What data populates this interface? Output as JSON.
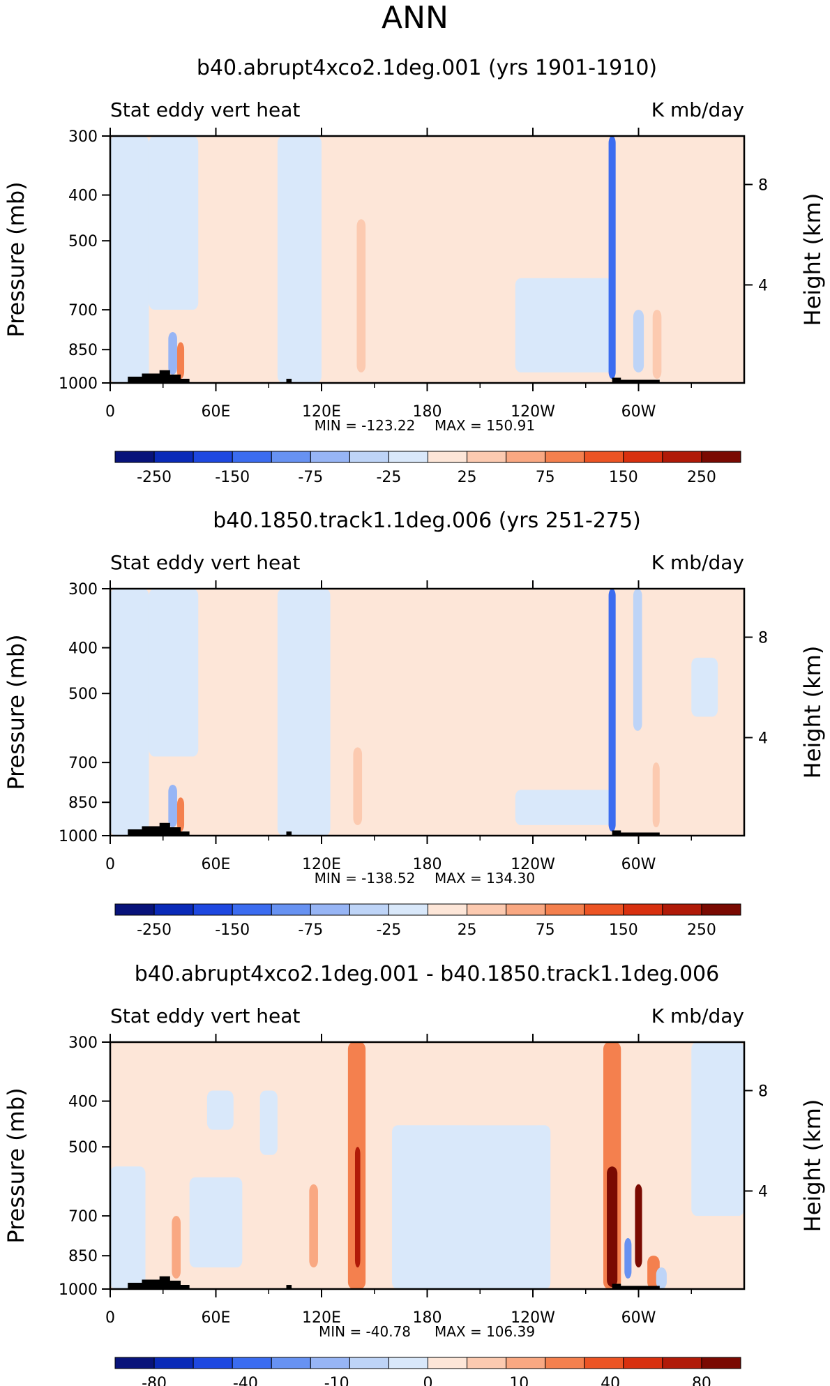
{
  "page_title": "ANN",
  "colors": {
    "frame": "#000000",
    "land": "#000000"
  },
  "chart_data": [
    {
      "type": "heatmap",
      "title": "b40.abrupt4xco2.1deg.001 (yrs 1901-1910)",
      "left_label": "Stat eddy vert heat",
      "right_label": "K mb/day",
      "ylabel": "Pressure (mb)",
      "ylabel_right": "Height (km)",
      "x_ticks": [
        "0",
        "60E",
        "120E",
        "180",
        "120W",
        "60W"
      ],
      "x_tick_lon": [
        0,
        60,
        120,
        180,
        240,
        300
      ],
      "y_ticks": [
        "300",
        "400",
        "500",
        "700",
        "850",
        "1000"
      ],
      "y_tick_p": [
        300,
        400,
        500,
        700,
        850,
        1000
      ],
      "height_ticks": [
        "8",
        "4"
      ],
      "height_tick_p": [
        380,
        620
      ],
      "min_label": "MIN = -123.22",
      "max_label": "MAX = 150.91",
      "colorbar_levels": [
        "-250",
        "-150",
        "-75",
        "-25",
        "25",
        "75",
        "150",
        "250"
      ],
      "colorbar_colors": [
        "#08137a",
        "#0a2ab8",
        "#1e48e0",
        "#3b6cf0",
        "#6792f2",
        "#97b5f5",
        "#bed4f7",
        "#d9e8fa",
        "#fde6d8",
        "#fccab0",
        "#f9a882",
        "#f4804e",
        "#ec5424",
        "#d8300f",
        "#b01a08",
        "#7a0a02"
      ],
      "bands": [
        {
          "lon": [
            0,
            22
          ],
          "p": [
            300,
            1000
          ],
          "value": -15
        },
        {
          "lon": [
            22,
            50
          ],
          "p": [
            300,
            700
          ],
          "value": -15
        },
        {
          "lon": [
            22,
            60
          ],
          "p": [
            700,
            1000
          ],
          "value": 15
        },
        {
          "lon": [
            33,
            38
          ],
          "p": [
            780,
            960
          ],
          "value": -80
        },
        {
          "lon": [
            38,
            42
          ],
          "p": [
            820,
            980
          ],
          "value": 120
        },
        {
          "lon": [
            60,
            95
          ],
          "p": [
            550,
            1000
          ],
          "value": 15
        },
        {
          "lon": [
            95,
            120
          ],
          "p": [
            300,
            1000
          ],
          "value": -15
        },
        {
          "lon": [
            140,
            145
          ],
          "p": [
            450,
            950
          ],
          "value": 60
        },
        {
          "lon": [
            150,
            230
          ],
          "p": [
            300,
            850
          ],
          "value": 15
        },
        {
          "lon": [
            230,
            285
          ],
          "p": [
            600,
            950
          ],
          "value": -15
        },
        {
          "lon": [
            283,
            287
          ],
          "p": [
            300,
            980
          ],
          "value": -130
        },
        {
          "lon": [
            297,
            303
          ],
          "p": [
            700,
            950
          ],
          "value": -60
        },
        {
          "lon": [
            308,
            313
          ],
          "p": [
            700,
            980
          ],
          "value": 50
        },
        {
          "lon": [
            320,
            360
          ],
          "p": [
            300,
            850
          ],
          "value": 15
        }
      ]
    },
    {
      "type": "heatmap",
      "title": "b40.1850.track1.1deg.006 (yrs 251-275)",
      "left_label": "Stat eddy vert heat",
      "right_label": "K mb/day",
      "ylabel": "Pressure (mb)",
      "ylabel_right": "Height (km)",
      "x_ticks": [
        "0",
        "60E",
        "120E",
        "180",
        "120W",
        "60W"
      ],
      "x_tick_lon": [
        0,
        60,
        120,
        180,
        240,
        300
      ],
      "y_ticks": [
        "300",
        "400",
        "500",
        "700",
        "850",
        "1000"
      ],
      "y_tick_p": [
        300,
        400,
        500,
        700,
        850,
        1000
      ],
      "height_ticks": [
        "8",
        "4"
      ],
      "height_tick_p": [
        380,
        620
      ],
      "min_label": "MIN = -138.52",
      "max_label": "MAX = 134.30",
      "colorbar_levels": [
        "-250",
        "-150",
        "-75",
        "-25",
        "25",
        "75",
        "150",
        "250"
      ],
      "colorbar_colors": [
        "#08137a",
        "#0a2ab8",
        "#1e48e0",
        "#3b6cf0",
        "#6792f2",
        "#97b5f5",
        "#bed4f7",
        "#d9e8fa",
        "#fde6d8",
        "#fccab0",
        "#f9a882",
        "#f4804e",
        "#ec5424",
        "#d8300f",
        "#b01a08",
        "#7a0a02"
      ],
      "bands": [
        {
          "lon": [
            0,
            22
          ],
          "p": [
            300,
            1000
          ],
          "value": -15
        },
        {
          "lon": [
            22,
            50
          ],
          "p": [
            300,
            680
          ],
          "value": -15
        },
        {
          "lon": [
            22,
            60
          ],
          "p": [
            680,
            1000
          ],
          "value": 15
        },
        {
          "lon": [
            33,
            38
          ],
          "p": [
            780,
            960
          ],
          "value": -80
        },
        {
          "lon": [
            38,
            42
          ],
          "p": [
            830,
            980
          ],
          "value": 110
        },
        {
          "lon": [
            60,
            95
          ],
          "p": [
            580,
            1000
          ],
          "value": 15
        },
        {
          "lon": [
            95,
            125
          ],
          "p": [
            300,
            1000
          ],
          "value": -15
        },
        {
          "lon": [
            138,
            143
          ],
          "p": [
            650,
            950
          ],
          "value": 50
        },
        {
          "lon": [
            155,
            230
          ],
          "p": [
            300,
            860
          ],
          "value": 15
        },
        {
          "lon": [
            230,
            285
          ],
          "p": [
            800,
            950
          ],
          "value": -15
        },
        {
          "lon": [
            283,
            287
          ],
          "p": [
            300,
            980
          ],
          "value": -140
        },
        {
          "lon": [
            297,
            302
          ],
          "p": [
            300,
            600
          ],
          "value": -40
        },
        {
          "lon": [
            308,
            312
          ],
          "p": [
            700,
            960
          ],
          "value": 45
        },
        {
          "lon": [
            330,
            345
          ],
          "p": [
            420,
            560
          ],
          "value": -15
        }
      ]
    },
    {
      "type": "heatmap",
      "title": "b40.abrupt4xco2.1deg.001 - b40.1850.track1.1deg.006",
      "left_label": "Stat eddy vert heat",
      "right_label": "K mb/day",
      "ylabel": "Pressure (mb)",
      "ylabel_right": "Height (km)",
      "x_ticks": [
        "0",
        "60E",
        "120E",
        "180",
        "120W",
        "60W"
      ],
      "x_tick_lon": [
        0,
        60,
        120,
        180,
        240,
        300
      ],
      "y_ticks": [
        "300",
        "400",
        "500",
        "700",
        "850",
        "1000"
      ],
      "y_tick_p": [
        300,
        400,
        500,
        700,
        850,
        1000
      ],
      "height_ticks": [
        "8",
        "4"
      ],
      "height_tick_p": [
        380,
        620
      ],
      "min_label": "MIN = -40.78",
      "max_label": "MAX = 106.39",
      "colorbar_levels": [
        "-80",
        "-40",
        "-10",
        "0",
        "10",
        "40",
        "80"
      ],
      "colorbar_colors": [
        "#08137a",
        "#0a2ab8",
        "#1e48e0",
        "#3b6cf0",
        "#6792f2",
        "#97b5f5",
        "#bed4f7",
        "#d9e8fa",
        "#fde6d8",
        "#fccab0",
        "#f9a882",
        "#f4804e",
        "#ec5424",
        "#d8300f",
        "#b01a08",
        "#7a0a02"
      ],
      "bands": [
        {
          "lon": [
            0,
            20
          ],
          "p": [
            550,
            1000
          ],
          "value": -5
        },
        {
          "lon": [
            28,
            34
          ],
          "p": [
            300,
            1000
          ],
          "value": 8
        },
        {
          "lon": [
            35,
            40
          ],
          "p": [
            700,
            950
          ],
          "value": 25
        },
        {
          "lon": [
            45,
            75
          ],
          "p": [
            580,
            900
          ],
          "value": -5
        },
        {
          "lon": [
            55,
            70
          ],
          "p": [
            380,
            460
          ],
          "value": -5
        },
        {
          "lon": [
            85,
            95
          ],
          "p": [
            380,
            520
          ],
          "value": -5
        },
        {
          "lon": [
            113,
            118
          ],
          "p": [
            600,
            900
          ],
          "value": 20
        },
        {
          "lon": [
            135,
            145
          ],
          "p": [
            300,
            1000
          ],
          "value": 30
        },
        {
          "lon": [
            139,
            142
          ],
          "p": [
            500,
            900
          ],
          "value": 60
        },
        {
          "lon": [
            160,
            250
          ],
          "p": [
            450,
            1000
          ],
          "value": -5
        },
        {
          "lon": [
            200,
            245
          ],
          "p": [
            300,
            450
          ],
          "value": 5
        },
        {
          "lon": [
            280,
            290
          ],
          "p": [
            300,
            1000
          ],
          "value": 30
        },
        {
          "lon": [
            282,
            288
          ],
          "p": [
            550,
            990
          ],
          "value": 90
        },
        {
          "lon": [
            292,
            296
          ],
          "p": [
            780,
            950
          ],
          "value": -35
        },
        {
          "lon": [
            298,
            302
          ],
          "p": [
            600,
            900
          ],
          "value": 70
        },
        {
          "lon": [
            305,
            312
          ],
          "p": [
            850,
            1000
          ],
          "value": 30
        },
        {
          "lon": [
            310,
            316
          ],
          "p": [
            900,
            1000
          ],
          "value": -15
        },
        {
          "lon": [
            330,
            360
          ],
          "p": [
            300,
            700
          ],
          "value": -5
        }
      ]
    }
  ]
}
